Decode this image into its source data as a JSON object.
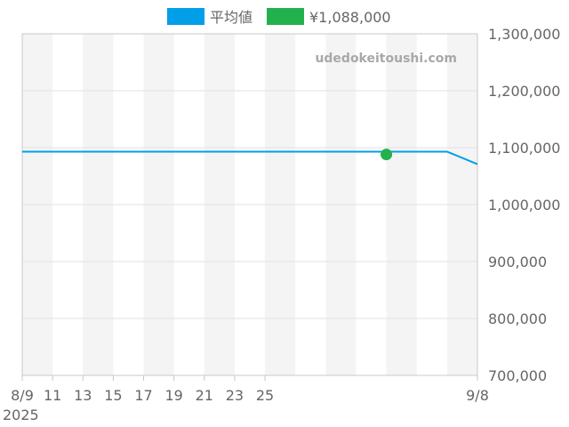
{
  "watermark": "udedokeitoushi.com",
  "colors": {
    "average": "#009fe8",
    "current": "#22b14c",
    "band": "#f4f4f4",
    "grid": "#e2e2e2",
    "axis": "#c8c8c8"
  },
  "chart_data": {
    "type": "line",
    "legend_position": "top-center",
    "x_axis_year": "2025",
    "x_ticks": [
      "8/9",
      "11",
      "13",
      "15",
      "17",
      "19",
      "21",
      "23",
      "25",
      "9/8"
    ],
    "y_ticks": [
      "700,000",
      "800,000",
      "900,000",
      "1,000,000",
      "1,100,000",
      "1,200,000",
      "1,300,000"
    ],
    "xlim": [
      "2025-08-09",
      "2025-09-08"
    ],
    "ylim": [
      700000,
      1300000
    ],
    "grid": true,
    "series": [
      {
        "name": "平均値",
        "type": "line",
        "color": "#009fe8",
        "points": [
          {
            "date": "2025-08-09",
            "value": 1093000
          },
          {
            "date": "2025-09-06",
            "value": 1093000
          },
          {
            "date": "2025-09-08",
            "value": 1071000
          }
        ]
      },
      {
        "name": "¥1,088,000",
        "type": "scatter",
        "color": "#22b14c",
        "points": [
          {
            "date": "2025-09-02",
            "value": 1088000
          }
        ]
      }
    ]
  }
}
